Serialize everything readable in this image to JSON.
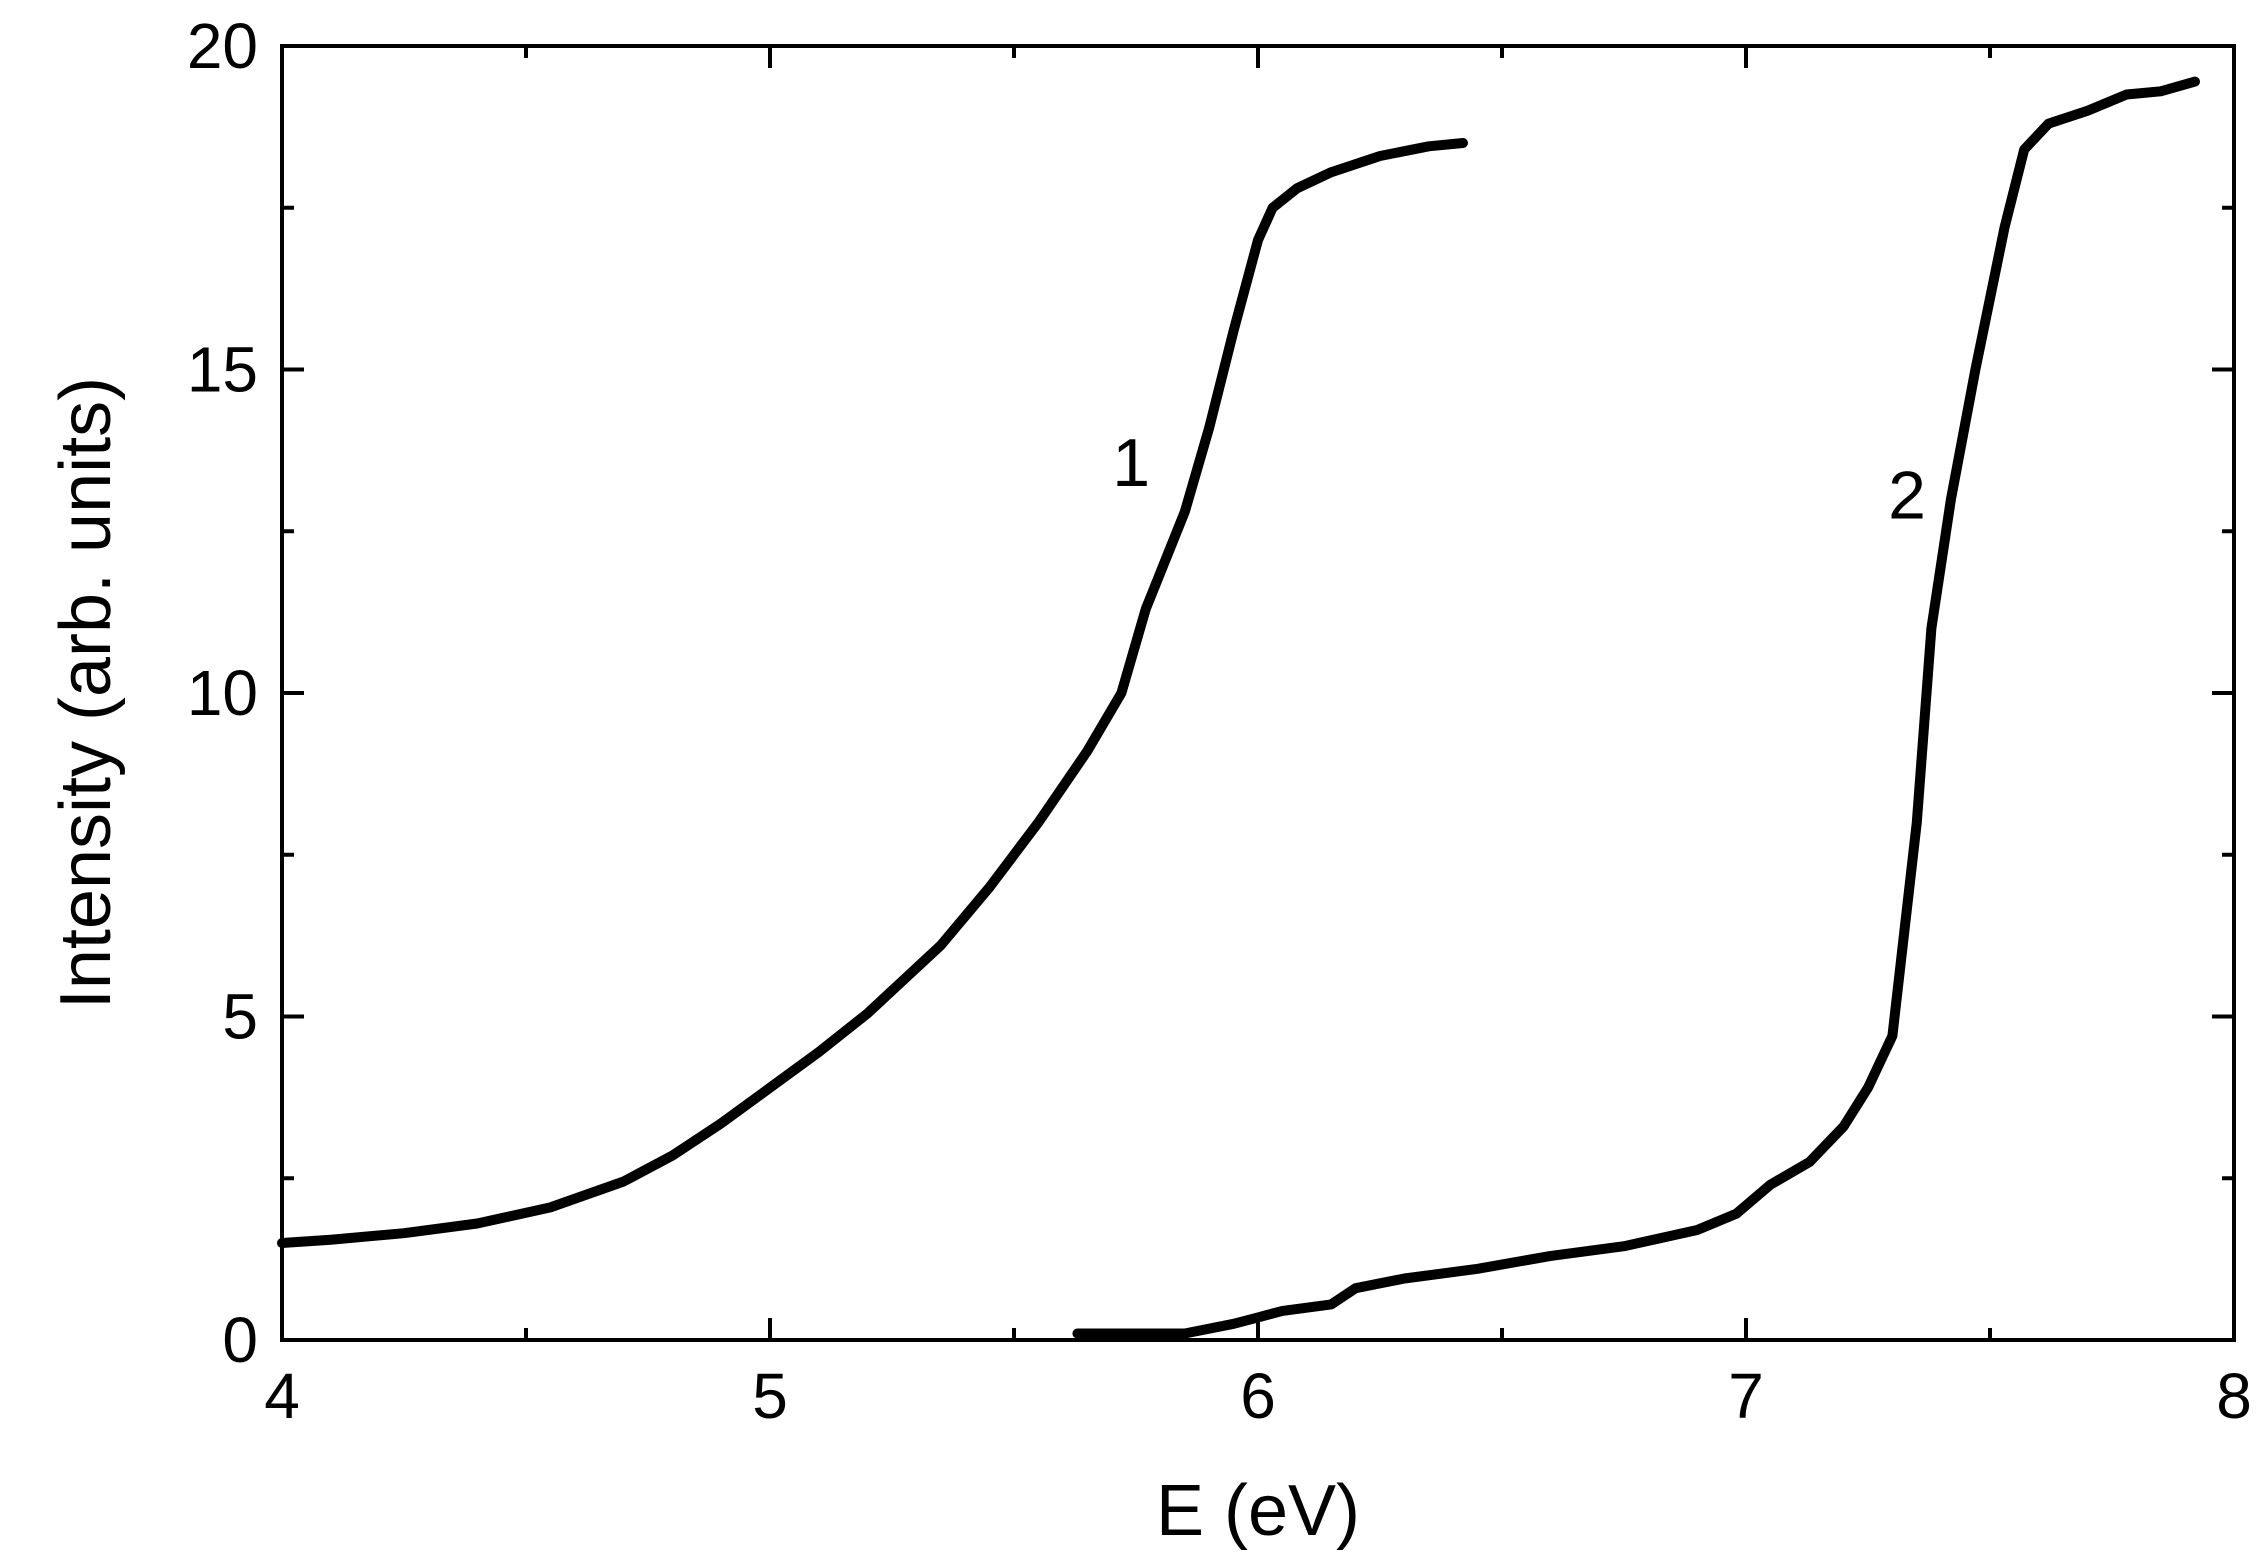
{
  "chart_data": {
    "type": "line",
    "title": "",
    "xlabel": "E (eV)",
    "ylabel": "Intensity (arb. units)",
    "xlim": [
      4,
      8
    ],
    "ylim": [
      0,
      20
    ],
    "x_ticks": [
      4,
      5,
      6,
      7,
      8
    ],
    "y_ticks": [
      0,
      5,
      10,
      15,
      20
    ],
    "x_minor_step": 0.5,
    "y_minor_step": 2.5,
    "grid": false,
    "legend": "none",
    "line_color": "#000000",
    "series": [
      {
        "name": "1",
        "x": [
          4.0,
          4.1,
          4.25,
          4.4,
          4.55,
          4.7,
          4.8,
          4.9,
          5.0,
          5.1,
          5.2,
          5.35,
          5.45,
          5.55,
          5.65,
          5.72,
          5.77,
          5.85,
          5.9,
          5.95,
          6.0,
          6.03,
          6.08,
          6.15,
          6.25,
          6.35,
          6.42
        ],
        "y": [
          1.5,
          1.55,
          1.65,
          1.8,
          2.05,
          2.45,
          2.85,
          3.35,
          3.9,
          4.45,
          5.05,
          6.1,
          7.0,
          8.0,
          9.1,
          10.0,
          11.3,
          12.8,
          14.1,
          15.6,
          17.0,
          17.5,
          17.8,
          18.05,
          18.3,
          18.45,
          18.5
        ]
      },
      {
        "name": "2",
        "x": [
          5.63,
          5.85,
          5.95,
          6.0,
          6.05,
          6.15,
          6.2,
          6.3,
          6.45,
          6.6,
          6.75,
          6.9,
          6.98,
          7.05,
          7.13,
          7.2,
          7.25,
          7.3,
          7.35,
          7.38,
          7.42,
          7.47,
          7.53,
          7.57,
          7.62,
          7.7,
          7.78,
          7.85,
          7.92
        ],
        "y": [
          0.1,
          0.1,
          0.25,
          0.35,
          0.45,
          0.55,
          0.8,
          0.95,
          1.1,
          1.3,
          1.45,
          1.7,
          1.95,
          2.4,
          2.75,
          3.3,
          3.9,
          4.7,
          8.0,
          11.0,
          13.0,
          15.0,
          17.2,
          18.4,
          18.8,
          19.0,
          19.25,
          19.3,
          19.45
        ]
      }
    ],
    "annotations": [
      {
        "text": "1",
        "x": 5.74,
        "y": 13.2
      },
      {
        "text": "2",
        "x": 7.33,
        "y": 12.7
      }
    ]
  }
}
